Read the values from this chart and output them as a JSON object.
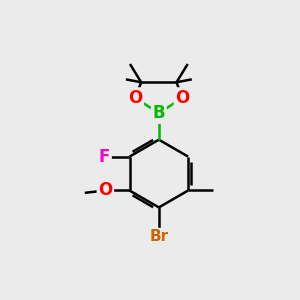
{
  "background_color": "#ebebeb",
  "bond_color": "#000000",
  "bond_width": 1.8,
  "atom_colors": {
    "B": "#00bb00",
    "O": "#ff0000",
    "F": "#ff00cc",
    "Br": "#cc6600",
    "C": "#000000"
  },
  "font_size_atoms": 11,
  "fig_width": 3.0,
  "fig_height": 3.0,
  "dpi": 100
}
